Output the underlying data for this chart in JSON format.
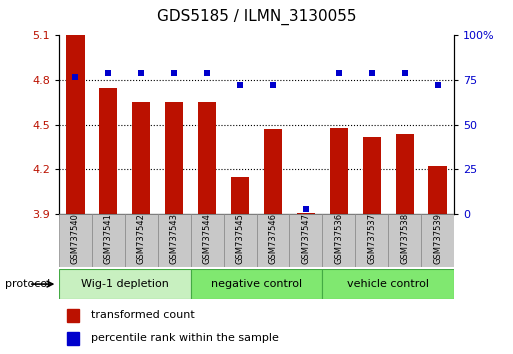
{
  "title": "GDS5185 / ILMN_3130055",
  "samples": [
    "GSM737540",
    "GSM737541",
    "GSM737542",
    "GSM737543",
    "GSM737544",
    "GSM737545",
    "GSM737546",
    "GSM737547",
    "GSM737536",
    "GSM737537",
    "GSM737538",
    "GSM737539"
  ],
  "transformed_count": [
    5.1,
    4.75,
    4.65,
    4.65,
    4.65,
    4.15,
    4.47,
    3.91,
    4.48,
    4.42,
    4.44,
    4.22
  ],
  "percentile_rank": [
    77,
    79,
    79,
    79,
    79,
    72,
    72,
    3,
    79,
    79,
    79,
    72
  ],
  "groups": [
    {
      "label": "Wig-1 depletion",
      "count": 4,
      "color": "#c8f0c0"
    },
    {
      "label": "negative control",
      "count": 4,
      "color": "#80e870"
    },
    {
      "label": "vehicle control",
      "count": 4,
      "color": "#80e870"
    }
  ],
  "group_starts": [
    0,
    4,
    8
  ],
  "ylim_left": [
    3.9,
    5.1
  ],
  "ylim_right": [
    0,
    100
  ],
  "yticks_left": [
    3.9,
    4.2,
    4.5,
    4.8,
    5.1
  ],
  "yticks_right": [
    0,
    25,
    50,
    75,
    100
  ],
  "bar_color": "#bb1100",
  "dot_color": "#0000cc",
  "sample_bg_color": "#c8c8c8",
  "title_fontsize": 11,
  "tick_fontsize": 8,
  "label_fontsize": 8
}
